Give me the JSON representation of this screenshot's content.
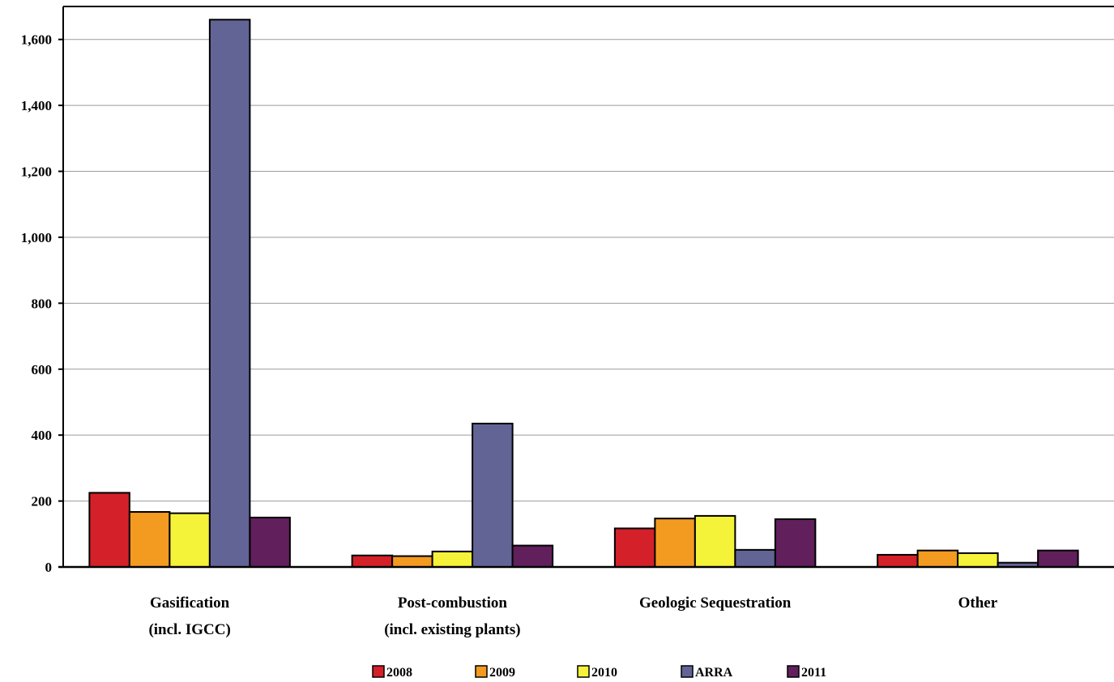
{
  "chart_data": {
    "type": "bar",
    "title": "",
    "xlabel": "",
    "ylabel": "",
    "ylim": [
      0,
      1700
    ],
    "yticks": [
      0,
      200,
      400,
      600,
      800,
      1000,
      1200,
      1400,
      1600
    ],
    "ytick_labels": [
      "0",
      "200",
      "400",
      "600",
      "800",
      "1,000",
      "1,200",
      "1,400",
      "1,600"
    ],
    "grid": "horizontal",
    "legend_position": "bottom",
    "categories": [
      [
        "Gasification",
        "(incl. IGCC)"
      ],
      [
        "Post-combustion",
        "(incl. existing plants)"
      ],
      [
        "Geologic Sequestration"
      ],
      [
        "Other"
      ]
    ],
    "series": [
      {
        "name": "2008",
        "color": "#d42028",
        "values": [
          225,
          35,
          117,
          37
        ]
      },
      {
        "name": "2009",
        "color": "#f39a20",
        "values": [
          167,
          33,
          147,
          50
        ]
      },
      {
        "name": "2010",
        "color": "#f5f23a",
        "values": [
          163,
          47,
          155,
          42
        ]
      },
      {
        "name": "ARRA",
        "color": "#636496",
        "values": [
          1660,
          435,
          52,
          13
        ]
      },
      {
        "name": "2011",
        "color": "#611f5c",
        "values": [
          150,
          65,
          145,
          50
        ]
      }
    ]
  }
}
